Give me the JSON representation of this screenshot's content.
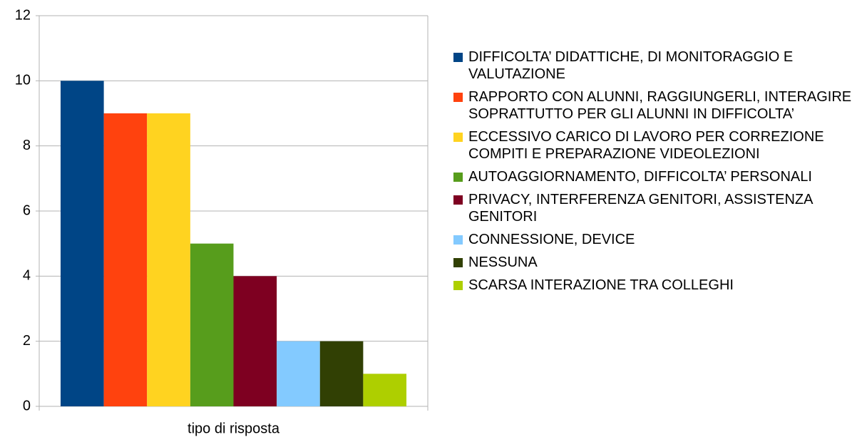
{
  "chart_data": {
    "type": "bar",
    "categories": [
      "tipo di risposta"
    ],
    "series": [
      {
        "name": "DIFFICOLTA’ DIDATTICHE, DI MONITORAGGIO E VALUTAZIONE",
        "color": "#004586",
        "values": [
          10
        ]
      },
      {
        "name": "RAPPORTO CON ALUNNI, RAGGIUNGERLI, INTERAGIRE SOPRATTUTTO PER GLI ALUNNI IN DIFFICOLTA’",
        "color": "#ff420e",
        "values": [
          9
        ]
      },
      {
        "name": "ECCESSIVO CARICO DI LAVORO PER CORREZIONE COMPITI E PREPARAZIONE VIDEOLEZIONI",
        "color": "#ffd320",
        "values": [
          9
        ]
      },
      {
        "name": "AUTOAGGIORNAMENTO, DIFFICOLTA’ PERSONALI",
        "color": "#579d1c",
        "values": [
          5
        ]
      },
      {
        "name": "PRIVACY, INTERFERENZA GENITORI, ASSISTENZA GENITORI",
        "color": "#7e0021",
        "values": [
          4
        ]
      },
      {
        "name": "CONNESSIONE, DEVICE",
        "color": "#83caff",
        "values": [
          2
        ]
      },
      {
        "name": "NESSUNA",
        "color": "#314004",
        "values": [
          2
        ]
      },
      {
        "name": "SCARSA INTERAZIONE TRA COLLEGHI",
        "color": "#aecf00",
        "values": [
          1
        ]
      }
    ],
    "ylim": [
      0,
      12
    ],
    "yticks": [
      0,
      2,
      4,
      6,
      8,
      10,
      12
    ],
    "grid": true,
    "legend": "right"
  }
}
